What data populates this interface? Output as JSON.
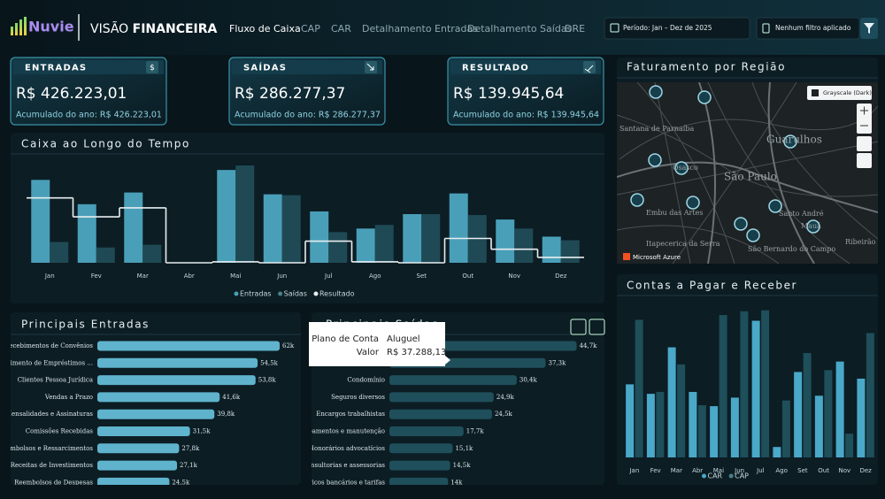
{
  "header": {
    "logo": "Nuvie",
    "title_light": "VISÃO",
    "title_bold": "FINANCEIRA",
    "tabs": [
      "Fluxo de Caixa",
      "CAP",
      "CAR",
      "Detalhamento Entradas",
      "Detalhamento Saídas",
      "DRE"
    ],
    "period": "Período: Jan – Dez de 2025",
    "filter": "Nenhum filtro aplicado"
  },
  "kpis": [
    {
      "label": "ENTRADAS",
      "icon": "$",
      "value": "R$ 426.223,01",
      "sub": "Acumulado do ano: R$ 426.223,01"
    },
    {
      "label": "SAÍDAS",
      "value": "R$ 286.277,37",
      "sub": "Acumulado do ano: R$ 286.277,37"
    },
    {
      "label": "RESULTADO",
      "value": "R$ 139.945,64",
      "sub": "Acumulado do ano: R$ 139.945,64"
    }
  ],
  "map": {
    "title": "Faturamento por Região",
    "style": "Grayscale (Dark)",
    "provider": "Microsoft Azure",
    "places": [
      "Santana de Parnaíba",
      "Osasco",
      "Guarulhos",
      "São Paulo",
      "Embu das Artes",
      "Itapecerica da Serra",
      "Santo André",
      "São Bernardo do Campo",
      "Mauá",
      "Ribeirão Pires"
    ]
  },
  "tooltip": {
    "field1": "Plano de Conta",
    "value1": "Aluguel",
    "field2": "Valor",
    "value2": "R$ 37.288,13"
  },
  "chart_data": [
    {
      "type": "bar",
      "title": "Caixa ao Longo do Tempo",
      "categories": [
        "Jan",
        "Fev",
        "Mar",
        "Abr",
        "Mai",
        "Jun",
        "Jul",
        "Ago",
        "Set",
        "Out",
        "Nov",
        "Dez"
      ],
      "ylim": [
        0,
        110
      ],
      "series": [
        {
          "name": "Entradas",
          "color": "#4a9fb8",
          "values": [
            92,
            65,
            78,
            0,
            103,
            76,
            57,
            38,
            54,
            77,
            48,
            29
          ]
        },
        {
          "name": "Saídas",
          "color": "#1f4a55",
          "values": [
            23,
            17,
            20,
            0,
            108,
            75,
            34,
            42,
            54,
            53,
            38,
            25
          ]
        },
        {
          "name": "Resultado",
          "color": "#e8eef0",
          "type": "step",
          "values": [
            72,
            51,
            61,
            0,
            1,
            0,
            24,
            1,
            0,
            27,
            15,
            6
          ]
        }
      ]
    },
    {
      "type": "hbar",
      "title": "Principais Entradas",
      "color": "#5fb3cc",
      "xlim": [
        0,
        65000
      ],
      "categories": [
        "Recebimentos de Convênios",
        "Recebimento de Empréstimos ...",
        "Clientes Pessoa Jurídica",
        "Vendas a Prazo",
        "Mensalidades e Assinaturas",
        "Comissões Recebidas",
        "Reembolsos e Ressarcimentos",
        "Receitas de Investimentos",
        "Reembolsos de Despesas"
      ],
      "values": [
        62000,
        54500,
        53800,
        41600,
        39800,
        31500,
        27800,
        27100,
        24500
      ],
      "value_labels": [
        "62k",
        "54,5k",
        "53,8k",
        "41,6k",
        "39,8k",
        "31,5k",
        "27,8k",
        "27,1k",
        "24,5k"
      ]
    },
    {
      "type": "hbar",
      "title": "Principais Saídas",
      "color": "#1f4f5b",
      "xlim": [
        0,
        45000
      ],
      "categories": [
        null,
        null,
        "Condomínio",
        "Seguros diversos",
        "Encargos trabalhistas",
        "Equipamentos e manutenção",
        "Honorários advocatícios",
        "Consultorias e assessorias",
        "Serviços bancários e tarifas"
      ],
      "values": [
        44700,
        37300,
        30400,
        24900,
        24500,
        17700,
        15100,
        14500,
        14000
      ],
      "value_labels": [
        "44,7k",
        "37,3k",
        "30,4k",
        "24,9k",
        "24,5k",
        "17,7k",
        "15,1k",
        "14,5k",
        "14k"
      ]
    },
    {
      "type": "bar",
      "title": "Contas a Pagar e Receber",
      "categories": [
        "Jan",
        "Fev",
        "Mar",
        "Abr",
        "Mai",
        "Jun",
        "Jul",
        "Ago",
        "Set",
        "Out",
        "Nov",
        "Dez"
      ],
      "ylim": [
        0,
        165
      ],
      "series": [
        {
          "name": "CAR",
          "color": "#4aa8c8",
          "values": [
            77,
            67,
            116,
            69,
            54,
            63,
            144,
            11,
            90,
            65,
            101,
            83
          ]
        },
        {
          "name": "CAP",
          "color": "#1e4f5a",
          "values": [
            145,
            69,
            98,
            55,
            150,
            154,
            155,
            60,
            110,
            92,
            25,
            131
          ]
        }
      ]
    }
  ]
}
